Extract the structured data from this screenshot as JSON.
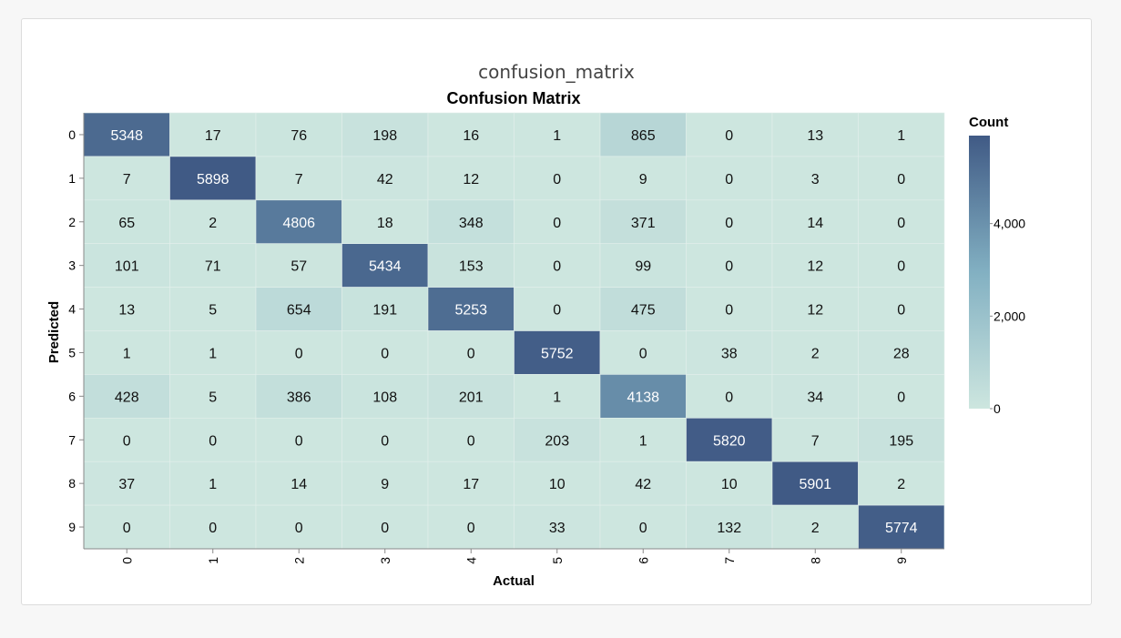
{
  "panel": {
    "title": "confusion_matrix"
  },
  "chart_data": {
    "type": "heatmap",
    "title": "Confusion Matrix",
    "xlabel": "Actual",
    "ylabel": "Predicted",
    "x_categories": [
      "0",
      "1",
      "2",
      "3",
      "4",
      "5",
      "6",
      "7",
      "8",
      "9"
    ],
    "y_categories": [
      "0",
      "1",
      "2",
      "3",
      "4",
      "5",
      "6",
      "7",
      "8",
      "9"
    ],
    "matrix": [
      [
        5348,
        17,
        76,
        198,
        16,
        1,
        865,
        0,
        13,
        1
      ],
      [
        7,
        5898,
        7,
        42,
        12,
        0,
        9,
        0,
        3,
        0
      ],
      [
        65,
        2,
        4806,
        18,
        348,
        0,
        371,
        0,
        14,
        0
      ],
      [
        101,
        71,
        57,
        5434,
        153,
        0,
        99,
        0,
        12,
        0
      ],
      [
        13,
        5,
        654,
        191,
        5253,
        0,
        475,
        0,
        12,
        0
      ],
      [
        1,
        1,
        0,
        0,
        0,
        5752,
        0,
        38,
        2,
        28
      ],
      [
        428,
        5,
        386,
        108,
        201,
        1,
        4138,
        0,
        34,
        0
      ],
      [
        0,
        0,
        0,
        0,
        0,
        203,
        1,
        5820,
        7,
        195
      ],
      [
        37,
        1,
        14,
        9,
        17,
        10,
        42,
        10,
        5901,
        2
      ],
      [
        0,
        0,
        0,
        0,
        0,
        33,
        0,
        132,
        2,
        5774
      ]
    ],
    "legend": {
      "title": "Count",
      "ticks": [
        0,
        2000,
        4000
      ],
      "tick_labels": [
        "0",
        "2,000",
        "4,000"
      ],
      "domain": [
        0,
        5901
      ],
      "placement": "right"
    },
    "colors": {
      "low": "#cde6df",
      "mid": "#82b0c2",
      "high": "#405a85"
    }
  }
}
